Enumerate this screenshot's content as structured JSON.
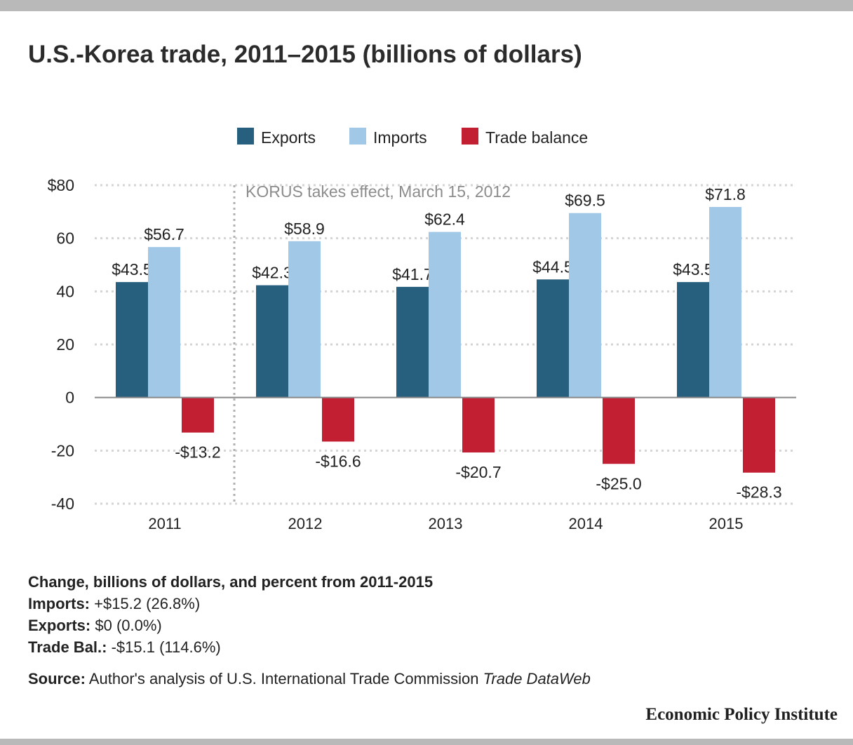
{
  "colors": {
    "exports": "#27607f",
    "imports": "#a2c8e8",
    "balance": "#c21f32",
    "grid": "#d4d4d4",
    "annotation": "#8c8c8c"
  },
  "chart_data": {
    "type": "bar",
    "title": "U.S.-Korea trade, 2011–2015 (billions of dollars)",
    "categories": [
      "2011",
      "2012",
      "2013",
      "2014",
      "2015"
    ],
    "series": [
      {
        "name": "Exports",
        "values": [
          43.5,
          42.3,
          41.7,
          44.5,
          43.5
        ],
        "labels": [
          "$43.5",
          "$42.3",
          "$41.7",
          "$44.5",
          "$43.5"
        ]
      },
      {
        "name": "Imports",
        "values": [
          56.7,
          58.9,
          62.4,
          69.5,
          71.8
        ],
        "labels": [
          "$56.7",
          "$58.9",
          "$62.4",
          "$69.5",
          "$71.8"
        ]
      },
      {
        "name": "Trade balance",
        "values": [
          -13.2,
          -16.6,
          -20.7,
          -25.0,
          -28.3
        ],
        "labels": [
          "-$13.2",
          "-$16.6",
          "-$20.7",
          "-$25.0",
          "-$28.3"
        ]
      }
    ],
    "ylim": [
      -40,
      80
    ],
    "yticks": [
      80,
      60,
      40,
      20,
      0,
      -20,
      -40
    ],
    "ytick_labels": [
      "$80",
      "60",
      "40",
      "20",
      "0",
      "-20",
      "-40"
    ],
    "xlabel": "",
    "ylabel": "",
    "grid": true,
    "legend": "top",
    "annotation": {
      "text": "KORUS takes effect, March 15, 2012"
    }
  },
  "notes": {
    "heading": "Change, billions of dollars, and percent from 2011-2015",
    "imports_label": "Imports:",
    "imports_value": " +$15.2 (26.8%)",
    "exports_label": "Exports:",
    "exports_value": " $0 (0.0%)",
    "balance_label": "Trade Bal.:",
    "balance_value": " -$15.1 (114.6%)"
  },
  "source": {
    "label": "Source:",
    "text": " Author's analysis of U.S. International Trade Commission ",
    "italic": "Trade DataWeb"
  },
  "brand": "Economic Policy Institute"
}
